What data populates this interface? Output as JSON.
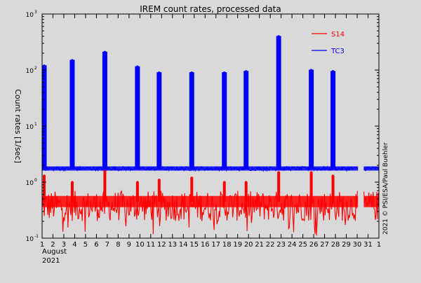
{
  "chart_data": {
    "type": "line",
    "title": "IREM count rates, processed data",
    "ylabel": "Count rates [1/sec]",
    "y_scale": "log",
    "ylim": [
      0.1,
      1000
    ],
    "y_ticks": [
      {
        "value": 0.1,
        "base": "10",
        "exp": "-1"
      },
      {
        "value": 1,
        "base": "10",
        "exp": "0"
      },
      {
        "value": 10,
        "base": "10",
        "exp": "1"
      },
      {
        "value": 100,
        "base": "10",
        "exp": "2"
      },
      {
        "value": 1000,
        "base": "10",
        "exp": "3"
      }
    ],
    "xlim": [
      "2021-08-01",
      "2021-09-01"
    ],
    "x_tick_labels": [
      "1",
      "2",
      "3",
      "4",
      "5",
      "6",
      "7",
      "8",
      "9",
      "10",
      "11",
      "12",
      "13",
      "14",
      "15",
      "16",
      "17",
      "18",
      "19",
      "20",
      "21",
      "22",
      "23",
      "24",
      "25",
      "26",
      "27",
      "28",
      "29",
      "30",
      "31",
      "1"
    ],
    "x_month_label": "August",
    "x_year_label": "2021",
    "legend_position": "top-right",
    "credit": "2021 © PSI/ESA/Paul Buehler",
    "grid": false,
    "series": [
      {
        "name": "S14",
        "color": "#ff0000",
        "baseline": 0.45,
        "noise_min": 0.2,
        "noise_max": 0.7,
        "peaks": [
          {
            "x": "2021-08-01",
            "y": 1.3
          },
          {
            "x": "2021-08-03",
            "y": 1.0
          },
          {
            "x": "2021-08-06",
            "y": 2.0
          },
          {
            "x": "2021-08-09",
            "y": 1.0
          },
          {
            "x": "2021-08-11",
            "y": 1.1
          },
          {
            "x": "2021-08-14",
            "y": 1.2
          },
          {
            "x": "2021-08-17",
            "y": 1.0
          },
          {
            "x": "2021-08-19",
            "y": 1.0
          },
          {
            "x": "2021-08-22",
            "y": 1.5
          },
          {
            "x": "2021-08-25",
            "y": 1.5
          },
          {
            "x": "2021-08-27",
            "y": 1.3
          }
        ]
      },
      {
        "name": "TC3",
        "color": "#0000ff",
        "baseline": 1.75,
        "noise_min": 1.6,
        "noise_max": 1.9,
        "peaks": [
          {
            "x": "2021-08-01",
            "y": 120
          },
          {
            "x": "2021-08-03",
            "y": 150
          },
          {
            "x": "2021-08-06",
            "y": 210
          },
          {
            "x": "2021-08-09",
            "y": 115
          },
          {
            "x": "2021-08-11",
            "y": 90
          },
          {
            "x": "2021-08-14",
            "y": 90
          },
          {
            "x": "2021-08-17",
            "y": 90
          },
          {
            "x": "2021-08-19",
            "y": 95
          },
          {
            "x": "2021-08-22",
            "y": 400
          },
          {
            "x": "2021-08-25",
            "y": 100
          },
          {
            "x": "2021-08-27",
            "y": 95
          }
        ]
      }
    ]
  }
}
